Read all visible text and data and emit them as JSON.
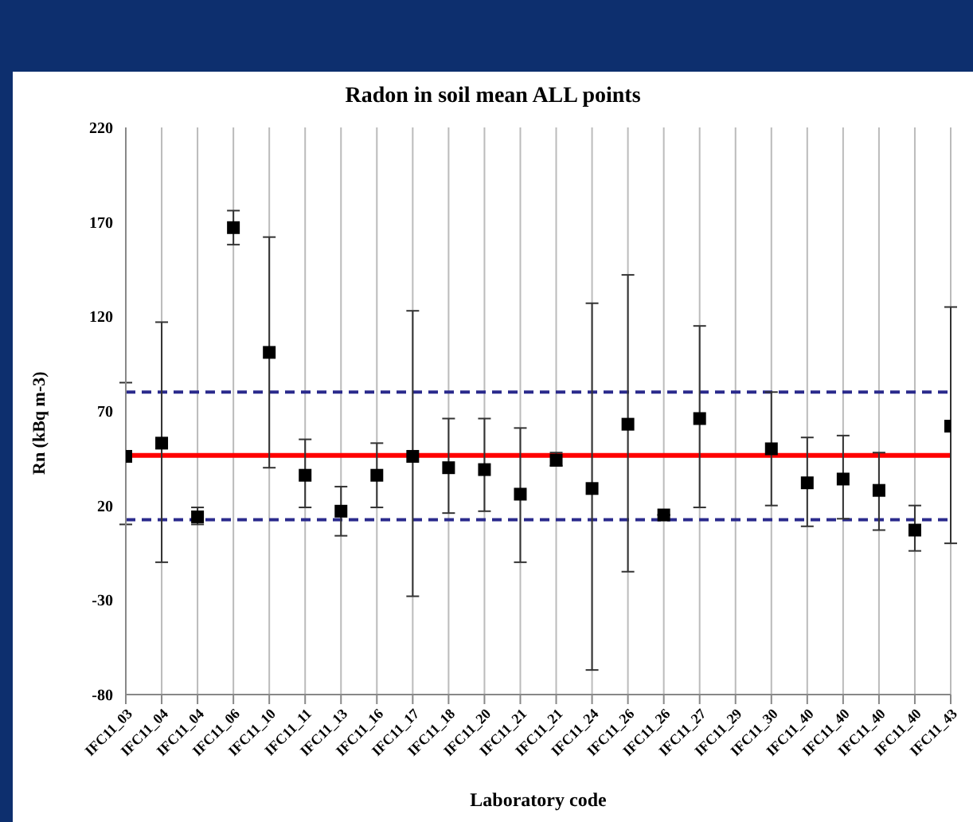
{
  "chart_data": {
    "type": "scatter",
    "title": "Radon in soil mean ALL points",
    "xlabel": "Laboratory code",
    "ylabel": "Rn (kBq m-3)",
    "categories": [
      "IFC11_03",
      "IFC11_04",
      "IFC11_04",
      "IFC11_06",
      "IFC11_10",
      "IFC11_11",
      "IFC11_13",
      "IFC11_16",
      "IFC11_17",
      "IFC11_18",
      "IFC11_20",
      "IFC11_21",
      "IFC11_21",
      "IFC11_24",
      "IFC11_26",
      "IFC11_26",
      "IFC11_27",
      "IFC11_29",
      "IFC11_30",
      "IFC11_40",
      "IFC11_40",
      "IFC11_40",
      "IFC11_40",
      "IFC11_43"
    ],
    "values": [
      46,
      53,
      14,
      167,
      101,
      36,
      17,
      36,
      46,
      40,
      39,
      26,
      44,
      29,
      63,
      15,
      66,
      null,
      50,
      32,
      34,
      28,
      7,
      62
    ],
    "errors": [
      [
        10,
        85
      ],
      [
        -10,
        117
      ],
      [
        10,
        19
      ],
      [
        158,
        176
      ],
      [
        40,
        162
      ],
      [
        19,
        55
      ],
      [
        4,
        30
      ],
      [
        19,
        53
      ],
      [
        -28,
        123
      ],
      [
        16,
        66
      ],
      [
        17,
        66
      ],
      [
        -10,
        61
      ],
      [
        41,
        48
      ],
      [
        -67,
        127
      ],
      [
        -15,
        142
      ],
      null,
      [
        19,
        115
      ],
      null,
      [
        20,
        80
      ],
      [
        9,
        56
      ],
      [
        13,
        57
      ],
      [
        7,
        48
      ],
      [
        -4,
        20
      ],
      [
        0,
        125
      ]
    ],
    "color": "#000000",
    "marker": "square",
    "grid": "x",
    "legend": false,
    "ylim": [
      -80,
      220
    ],
    "yticks": [
      -80,
      -30,
      20,
      70,
      120,
      170,
      220
    ],
    "ref_lines": [
      {
        "axis": "y",
        "value": 46.5,
        "color": "#ff0000",
        "line_style": "solid"
      },
      {
        "axis": "y",
        "value": 80,
        "color": "#2a2a8c",
        "line_style": "dashed"
      },
      {
        "axis": "y",
        "value": 12.5,
        "color": "#2a2a8c",
        "line_style": "dashed"
      }
    ]
  }
}
